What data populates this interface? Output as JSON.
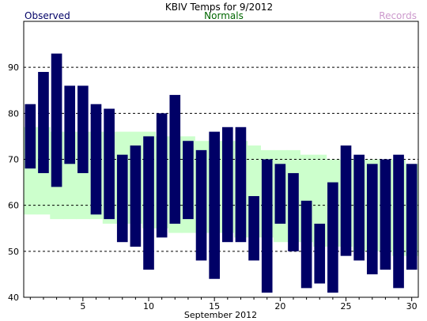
{
  "chart_data": {
    "type": "bar",
    "title": "KBIV Temps for 9/2012",
    "xlabel": "September 2012",
    "ylabel": "",
    "ylim": [
      40,
      100
    ],
    "xlim": [
      0.5,
      30.5
    ],
    "yticks": [
      40,
      50,
      60,
      70,
      80,
      90
    ],
    "xticks": [
      5,
      10,
      15,
      20,
      25,
      30
    ],
    "grid": "horizontal dashed at 50, 60, 70, 80, 90",
    "legend": {
      "observed_label": "Observed",
      "normals_label": "Normals",
      "records_label": "Records",
      "placement": "top, above plot"
    },
    "colors": {
      "observed": "#000066",
      "normals": "#ccffcc",
      "normals_label": "#006600",
      "records_label": "#cc99cc",
      "grid": "#000000"
    },
    "days": [
      1,
      2,
      3,
      4,
      5,
      6,
      7,
      8,
      9,
      10,
      11,
      12,
      13,
      14,
      15,
      16,
      17,
      18,
      19,
      20,
      21,
      22,
      23,
      24,
      25,
      26,
      27,
      28,
      29,
      30
    ],
    "observed_high": [
      82,
      89,
      93,
      86,
      86,
      82,
      81,
      71,
      73,
      75,
      80,
      84,
      74,
      72,
      76,
      77,
      77,
      62,
      70,
      69,
      67,
      61,
      56,
      65,
      73,
      71,
      69,
      70,
      71,
      69
    ],
    "observed_low": [
      68,
      67,
      64,
      69,
      67,
      58,
      57,
      52,
      51,
      46,
      53,
      56,
      57,
      48,
      44,
      52,
      52,
      48,
      41,
      56,
      50,
      42,
      43,
      41,
      49,
      48,
      45,
      46,
      42,
      46
    ],
    "normal_high": [
      77,
      77,
      76,
      76,
      76,
      76,
      76,
      76,
      76,
      76,
      75,
      75,
      75,
      74,
      74,
      74,
      74,
      73,
      72,
      72,
      72,
      71,
      71,
      70,
      70,
      70,
      70,
      70,
      70,
      69
    ],
    "normal_low": [
      58,
      58,
      57,
      57,
      57,
      57,
      56,
      56,
      56,
      55,
      55,
      54,
      54,
      54,
      54,
      54,
      53,
      53,
      53,
      52,
      52,
      52,
      51,
      51,
      51,
      50,
      50,
      50,
      49,
      49
    ]
  }
}
